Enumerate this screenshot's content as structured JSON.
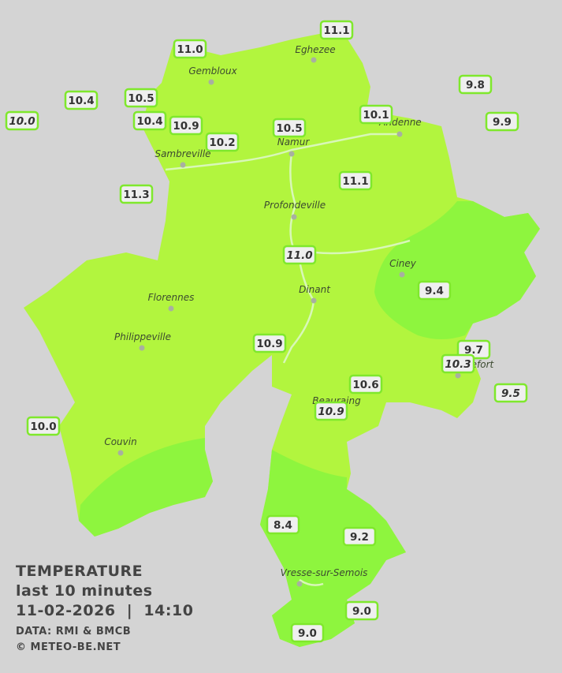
{
  "legend": {
    "title": "TEMPERATURE",
    "subtitle": "last 10 minutes",
    "datetime": "11-02-2026  |  14:10",
    "source": "DATA: RMI & BMCB",
    "copyright": "© METEO-BE.NET"
  },
  "towns": [
    "Eghezee",
    "Gembloux",
    "Andenne",
    "Namur",
    "Sambreville",
    "Profondeville",
    "Ciney",
    "Dinant",
    "Florennes",
    "Philippeville",
    "Rochefort",
    "Beauraing",
    "Couvin",
    "Vresse-sur-Semois"
  ],
  "stations": [
    "11.1",
    "11.0",
    "9.8",
    "10.4",
    "10.5",
    "10.0",
    "10.4",
    "10.9",
    "10.1",
    "9.9",
    "10.5",
    "10.2",
    "11.1",
    "11.3",
    "11.0",
    "9.4",
    "10.9",
    "9.7",
    "10.3",
    "10.6",
    "9.5",
    "10.9",
    "10.0",
    "8.4",
    "9.2",
    "9.0",
    "9.0"
  ]
}
